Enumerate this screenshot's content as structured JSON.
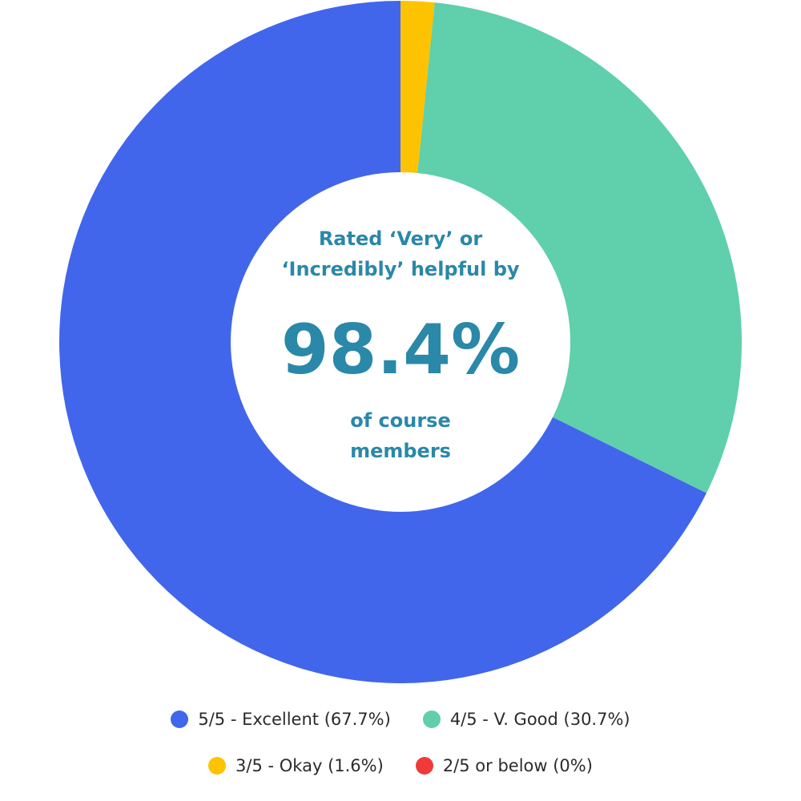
{
  "chart_data": {
    "type": "pie",
    "variant": "donut",
    "categories": [
      "5/5 - Excellent (67.7%)",
      "4/5 - V. Good (30.7%)",
      "3/5 - Okay (1.6%)",
      "2/5 or below (0%)"
    ],
    "values": [
      67.7,
      30.7,
      1.6,
      0
    ],
    "colors": [
      "#4166EB",
      "#5FCFAC",
      "#FEC300",
      "#F03A3A"
    ],
    "legend_position": "bottom",
    "center": {
      "line1": "Rated ‘Very’ or",
      "line2": "‘Incredibly’ helpful by",
      "value": "98.4%",
      "line3": "of course",
      "line4": "members",
      "color": "#2A88A8"
    }
  }
}
